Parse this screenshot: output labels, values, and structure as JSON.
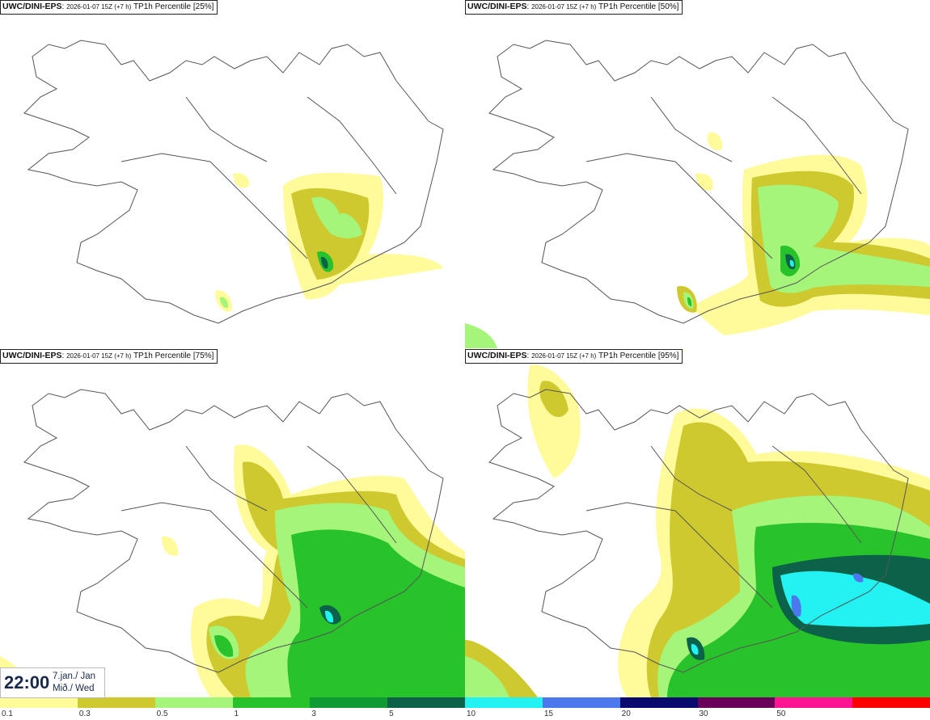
{
  "panels": [
    {
      "model": "UWC/DINI-EPS",
      "run": "2026-01-07 15Z (+7 h)",
      "param": "TP1h Percentile [25%]"
    },
    {
      "model": "UWC/DINI-EPS",
      "run": "2026-01-07 15Z (+7 h)",
      "param": "TP1h Percentile [50%]"
    },
    {
      "model": "UWC/DINI-EPS",
      "run": "2026-01-07 15Z (+7 h)",
      "param": "TP1h Percentile [75%]"
    },
    {
      "model": "UWC/DINI-EPS",
      "run": "2026-01-07 15Z (+7 h)",
      "param": "TP1h Percentile [95%]"
    }
  ],
  "valid_time": {
    "time": "22:00",
    "date_line1": "7.jan./ Jan",
    "date_line2": "Mið./ Wed"
  },
  "legend": {
    "labels": [
      "0.1",
      "0.3",
      "0.5",
      "1",
      "3",
      "5",
      "10",
      "15",
      "20",
      "30",
      "50"
    ],
    "colors": [
      "#fffa9a",
      "#cdc92e",
      "#a5f57a",
      "#28c22a",
      "#0f9a34",
      "#0b6248",
      "#22f2f2",
      "#4c78ee",
      "#0a0a6e",
      "#6a005a",
      "#ff1493",
      "#ff0000"
    ]
  },
  "colors": {
    "land_outline": "#555555",
    "water": "#ffffff"
  }
}
